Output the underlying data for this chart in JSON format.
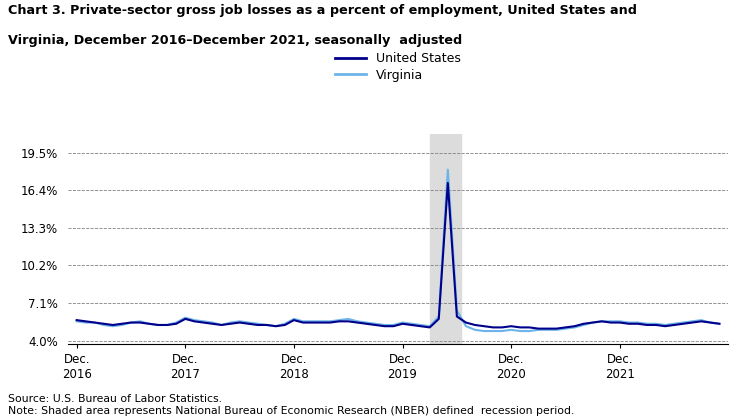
{
  "title_line1": "Chart 3. Private-sector gross job losses as a percent of employment, United States and",
  "title_line2": "Virginia, December 2016–December 2021, seasonally  adjusted",
  "source_note": "Source: U.S. Bureau of Labor Statistics.\nNote: Shaded area represents National Bureau of Economic Research (NBER) defined  recession period.",
  "legend_labels": [
    "United States",
    "Virginia"
  ],
  "us_color": "#00008B",
  "va_color": "#6EB4E8",
  "shaded_color": "#DCDCDC",
  "shaded_start": 39.0,
  "shaded_end": 42.5,
  "yticks": [
    4.0,
    7.1,
    10.2,
    13.3,
    16.4,
    19.5
  ],
  "ytick_labels": [
    "4.0%",
    "7.1%",
    "10.2%",
    "13.3%",
    "16.4%",
    "19.5%"
  ],
  "ylim": [
    3.7,
    21.0
  ],
  "xtick_positions": [
    0,
    12,
    24,
    36,
    48,
    60
  ],
  "xtick_labels": [
    "Dec.\n2016",
    "Dec.\n2017",
    "Dec.\n2018",
    "Dec.\n2019",
    "Dec.\n2020",
    "Dec.\n2021"
  ],
  "xlim": [
    -1,
    72
  ],
  "us_data": [
    5.7,
    5.6,
    5.5,
    5.4,
    5.3,
    5.4,
    5.5,
    5.5,
    5.4,
    5.3,
    5.3,
    5.4,
    5.8,
    5.6,
    5.5,
    5.4,
    5.3,
    5.4,
    5.5,
    5.4,
    5.3,
    5.3,
    5.2,
    5.3,
    5.7,
    5.5,
    5.5,
    5.5,
    5.5,
    5.6,
    5.6,
    5.5,
    5.4,
    5.3,
    5.2,
    5.2,
    5.4,
    5.3,
    5.2,
    5.1,
    5.8,
    17.0,
    6.0,
    5.5,
    5.3,
    5.2,
    5.1,
    5.1,
    5.2,
    5.1,
    5.1,
    5.0,
    5.0,
    5.0,
    5.1,
    5.2,
    5.4,
    5.5,
    5.6,
    5.5,
    5.5,
    5.4,
    5.4,
    5.3,
    5.3,
    5.2,
    5.3,
    5.4,
    5.5,
    5.6,
    5.5,
    5.4
  ],
  "va_data": [
    5.6,
    5.5,
    5.5,
    5.3,
    5.2,
    5.3,
    5.5,
    5.6,
    5.4,
    5.3,
    5.3,
    5.5,
    5.9,
    5.7,
    5.6,
    5.5,
    5.3,
    5.5,
    5.6,
    5.5,
    5.4,
    5.3,
    5.2,
    5.4,
    5.8,
    5.6,
    5.6,
    5.6,
    5.6,
    5.7,
    5.8,
    5.6,
    5.5,
    5.4,
    5.3,
    5.3,
    5.5,
    5.4,
    5.3,
    5.2,
    6.0,
    18.1,
    6.5,
    5.2,
    4.9,
    4.8,
    4.8,
    4.8,
    4.9,
    4.8,
    4.8,
    4.9,
    4.9,
    4.9,
    5.0,
    5.1,
    5.3,
    5.5,
    5.6,
    5.6,
    5.6,
    5.5,
    5.5,
    5.4,
    5.4,
    5.3,
    5.4,
    5.5,
    5.6,
    5.7,
    5.5,
    5.4
  ]
}
